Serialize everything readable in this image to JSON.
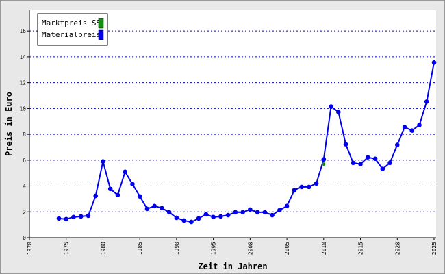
{
  "chart_data": {
    "type": "line",
    "xlabel": "Zeit in Jahren",
    "ylabel": "Preis in Euro",
    "xlim": [
      1970,
      2025
    ],
    "xticks": [
      1970,
      1975,
      1980,
      1985,
      1990,
      1995,
      2000,
      2005,
      2010,
      2015,
      2020,
      2025
    ],
    "ylim": [
      0,
      17.6
    ],
    "yticks": [
      0,
      2,
      4,
      6,
      8,
      10,
      12,
      14,
      16
    ],
    "grid": true,
    "legend": "upper left",
    "series": [
      {
        "name": "Marktpreis SS",
        "color": "#109010",
        "x": [
          2010
        ],
        "values": [
          5.69
        ]
      },
      {
        "name": "Materialpreis",
        "color": "#0000ee",
        "x": [
          1974,
          1975,
          1976,
          1977,
          1978,
          1979,
          1980,
          1981,
          1982,
          1983,
          1984,
          1985,
          1986,
          1987,
          1988,
          1989,
          1990,
          1991,
          1992,
          1993,
          1994,
          1995,
          1996,
          1997,
          1998,
          1999,
          2000,
          2001,
          2002,
          2003,
          2004,
          2005,
          2006,
          2007,
          2008,
          2009,
          2010,
          2011,
          2012,
          2013,
          2014,
          2015,
          2016,
          2017,
          2018,
          2019,
          2020,
          2021,
          2022,
          2023,
          2024,
          2025
        ],
        "values": [
          1.49,
          1.44,
          1.6,
          1.65,
          1.7,
          3.24,
          5.9,
          3.77,
          3.3,
          5.1,
          4.15,
          3.2,
          2.23,
          2.45,
          2.29,
          1.97,
          1.54,
          1.33,
          1.22,
          1.49,
          1.81,
          1.6,
          1.65,
          1.75,
          1.97,
          1.97,
          2.18,
          1.97,
          1.97,
          1.75,
          2.13,
          2.45,
          3.67,
          3.93,
          3.93,
          4.2,
          6.06,
          10.15,
          9.73,
          7.23,
          5.79,
          5.69,
          6.22,
          6.11,
          5.32,
          5.79,
          7.18,
          8.56,
          8.29,
          8.72,
          10.53,
          13.56
        ]
      }
    ]
  }
}
